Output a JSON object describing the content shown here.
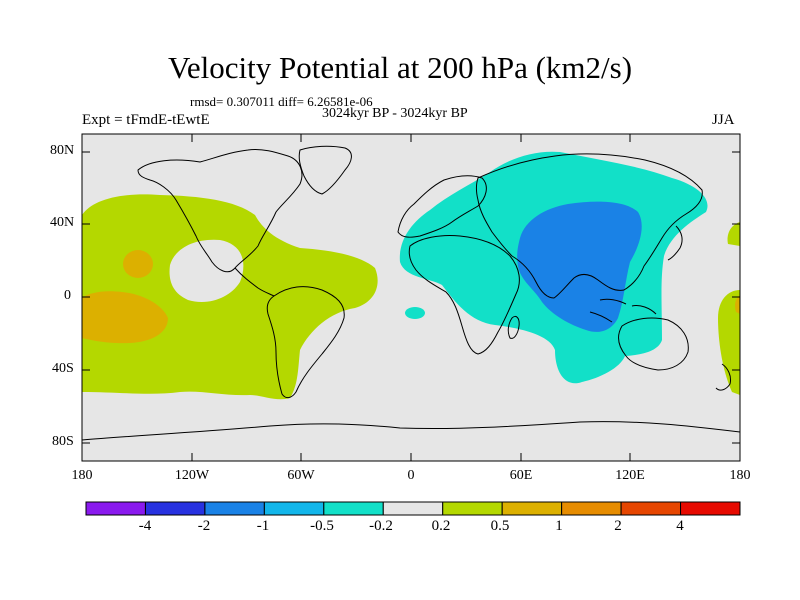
{
  "header": {
    "title": "Velocity Potential at 200 hPa (km2/s)",
    "stats": "rmsd= 0.307011 diff= 6.26581e-06",
    "period": "3024kyr BP - 3024kyr BP",
    "experiment": "Expt = tFmdE-tEwtE",
    "season": "JJA"
  },
  "axes": {
    "lat_labels": [
      "80N",
      "40N",
      "0",
      "40S",
      "80S"
    ],
    "lon_labels": [
      "180",
      "120W",
      "60W",
      "0",
      "60E",
      "120E",
      "180"
    ]
  },
  "colorbar": {
    "labels": [
      "-4",
      "-2",
      "-1",
      "-0.5",
      "-0.2",
      "0.2",
      "0.5",
      "1",
      "2",
      "4"
    ],
    "colors": [
      "#8a1aee",
      "#2832e0",
      "#1a82e6",
      "#12b6ea",
      "#12e0c8",
      "#e6e6e6",
      "#b4d800",
      "#dcb000",
      "#e68c00",
      "#e64600",
      "#e60a00"
    ]
  },
  "map": {
    "ocean_color": "#e6e6e6",
    "coastline_color": "#000000"
  }
}
